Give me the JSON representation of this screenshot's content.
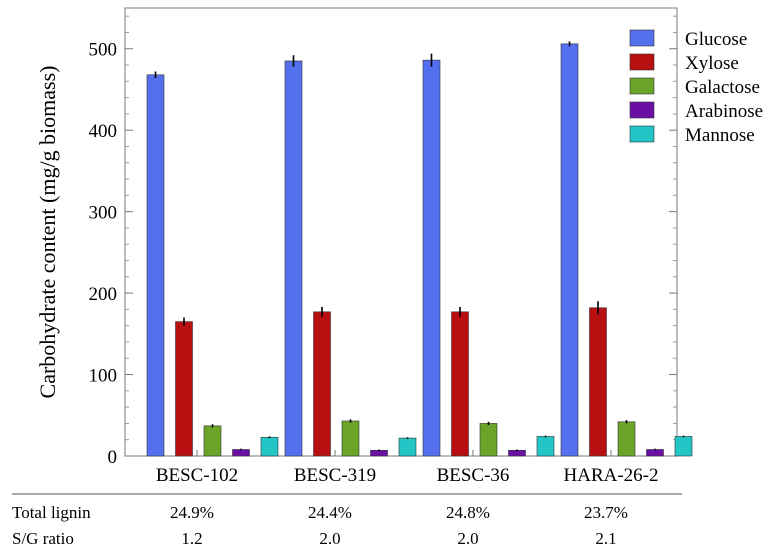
{
  "chart_data": {
    "type": "bar",
    "ylabel": "Carbohydrate content (mg/g biomass)",
    "ylim": [
      0,
      550
    ],
    "yticks": [
      0,
      100,
      200,
      300,
      400,
      500
    ],
    "categories": [
      "BESC-102",
      "BESC-319",
      "BESC-36",
      "HARA-26-2"
    ],
    "legend_position": "top-right",
    "series": [
      {
        "name": "Glucose",
        "color": "#5470ee",
        "values": [
          468,
          485,
          486,
          506
        ],
        "errors": [
          4,
          7,
          8,
          3
        ]
      },
      {
        "name": "Xylose",
        "color": "#b81010",
        "values": [
          165,
          177,
          177,
          182
        ],
        "errors": [
          5,
          6,
          6,
          8
        ]
      },
      {
        "name": "Galactose",
        "color": "#6aa52a",
        "values": [
          37,
          43,
          40,
          42
        ],
        "errors": [
          2,
          2,
          2,
          2
        ]
      },
      {
        "name": "Arabinose",
        "color": "#6a0ea6",
        "values": [
          8,
          7,
          7,
          8
        ],
        "errors": [
          1,
          1,
          1,
          1
        ]
      },
      {
        "name": "Mannose",
        "color": "#22c6c6",
        "values": [
          23,
          22,
          24,
          24
        ],
        "errors": [
          1,
          1,
          1,
          1
        ]
      }
    ]
  },
  "table": {
    "rows": [
      {
        "label": "Total lignin",
        "values": [
          "24.9%",
          "24.4%",
          "24.8%",
          "23.7%"
        ]
      },
      {
        "label": "S/G ratio",
        "values": [
          "1.2",
          "2.0",
          "2.0",
          "2.1"
        ]
      }
    ]
  }
}
